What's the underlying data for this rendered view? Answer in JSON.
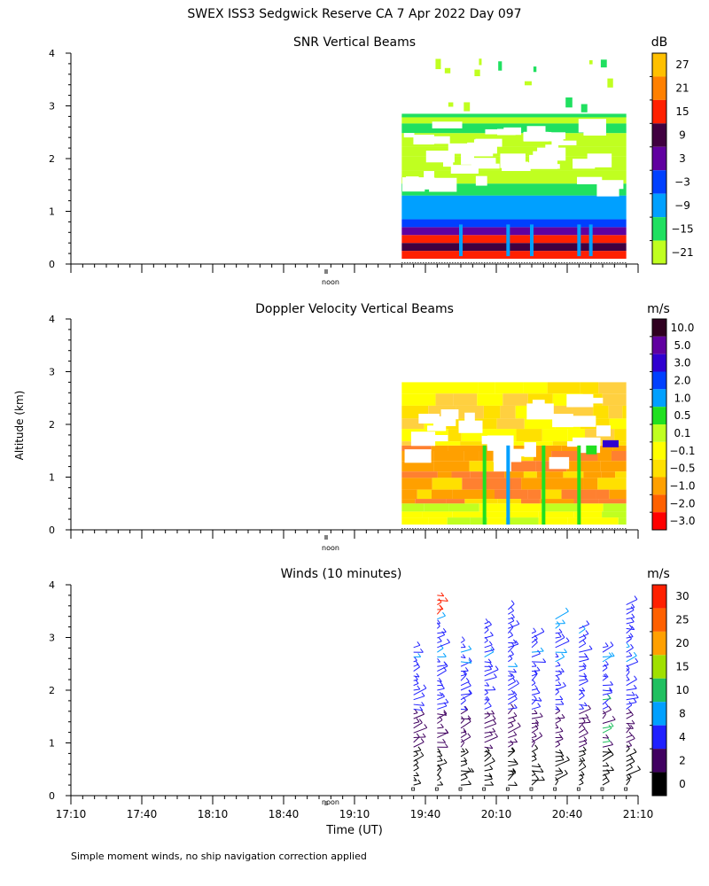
{
  "figure": {
    "title": "SWEX ISS3 Sedgwick Reserve CA   7 Apr 2022 Day 097",
    "ylabel": "Altitude (km)",
    "xlabel": "Time (UT)",
    "footer": "Simple moment winds, no ship navigation correction applied",
    "noon_label": "noon"
  },
  "chart_data": [
    {
      "type": "heatmap",
      "title": "SNR Vertical Beams",
      "ylim": [
        0,
        4
      ],
      "yticks": [
        "0",
        "1",
        "2",
        "3",
        "4"
      ],
      "data_start_time": "19:30",
      "data_end_time": "21:05",
      "top_altitude_km": 2.8,
      "colorbar": {
        "unit": "dB",
        "labels": [
          "27",
          "21",
          "15",
          "9",
          "3",
          "−3",
          "−9",
          "−15",
          "−21"
        ],
        "colors": [
          "#ffc000",
          "#ff8000",
          "#ff2000",
          "#400040",
          "#6000a0",
          "#0040ff",
          "#00a0ff",
          "#20e060",
          "#c0ff20"
        ]
      },
      "altitude_profile": [
        {
          "from_km": 0.1,
          "to_km": 0.25,
          "category": "15"
        },
        {
          "from_km": 0.25,
          "to_km": 0.4,
          "category": "9"
        },
        {
          "from_km": 0.4,
          "to_km": 0.55,
          "category": "15"
        },
        {
          "from_km": 0.55,
          "to_km": 0.7,
          "category": "3"
        },
        {
          "from_km": 0.7,
          "to_km": 0.85,
          "category": "−3"
        },
        {
          "from_km": 0.85,
          "to_km": 1.3,
          "category": "−9"
        },
        {
          "from_km": 1.3,
          "to_km": 2.8,
          "category": "−15 / −21"
        }
      ]
    },
    {
      "type": "heatmap",
      "title": "Doppler Velocity Vertical Beams",
      "ylim": [
        0,
        4
      ],
      "yticks": [
        "0",
        "1",
        "2",
        "3",
        "4"
      ],
      "data_start_time": "19:30",
      "data_end_time": "21:05",
      "top_altitude_km": 2.8,
      "colorbar": {
        "unit": "m/s",
        "labels": [
          "10.0",
          "5.0",
          "3.0",
          "2.0",
          "1.0",
          "0.5",
          "0.1",
          "−0.1",
          "−0.5",
          "−1.0",
          "−2.0",
          "−3.0"
        ],
        "colors": [
          "#300020",
          "#6000a0",
          "#3000d0",
          "#0040ff",
          "#00a0ff",
          "#20e020",
          "#c0ff20",
          "#ffff00",
          "#ffe000",
          "#ffa000",
          "#ff6000",
          "#ff0000"
        ]
      },
      "altitude_profile": [
        {
          "from_km": 0.1,
          "to_km": 0.5,
          "category": "−0.1 to 0.1"
        },
        {
          "from_km": 0.5,
          "to_km": 1.6,
          "category": "−0.5 to −1.0"
        },
        {
          "from_km": 1.6,
          "to_km": 2.8,
          "category": "−0.1 to −0.5"
        }
      ]
    },
    {
      "type": "scatter",
      "title": "Winds (10 minutes)",
      "ylim": [
        0,
        4
      ],
      "yticks": [
        "0",
        "1",
        "2",
        "3",
        "4"
      ],
      "xlim": [
        "17:10",
        "21:10"
      ],
      "xticks": [
        "17:10",
        "17:40",
        "18:10",
        "18:40",
        "19:10",
        "19:40",
        "20:10",
        "20:40",
        "21:10"
      ],
      "colorbar": {
        "unit": "m/s",
        "labels": [
          "30",
          "25",
          "20",
          "15",
          "10",
          "8",
          "4",
          "2",
          "0"
        ],
        "colors": [
          "#ff2000",
          "#ff6000",
          "#ffa000",
          "#a0e000",
          "#20c060",
          "#00a0ff",
          "#2020ff",
          "#400060",
          "#000000"
        ]
      },
      "profile_times": [
        "19:35",
        "19:45",
        "19:55",
        "20:05",
        "20:15",
        "20:25",
        "20:35",
        "20:45",
        "20:55",
        "21:05"
      ],
      "profile_top_km": [
        2.85,
        3.8,
        2.9,
        3.3,
        3.6,
        3.1,
        3.35,
        3.2,
        2.85,
        3.65
      ]
    }
  ]
}
